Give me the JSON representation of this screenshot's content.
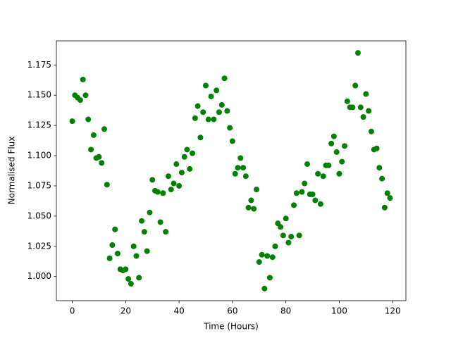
{
  "chart_data": {
    "type": "scatter",
    "x_label": "Time (Hours)",
    "y_label": "Normalised Flux",
    "color": "#008000",
    "grid": false,
    "x": [
      0,
      1,
      2,
      3,
      4,
      5,
      6,
      7,
      8,
      9,
      10,
      11,
      12,
      13,
      14,
      15,
      16,
      17,
      18,
      19,
      20,
      21,
      22,
      23,
      24,
      25,
      26,
      27,
      28,
      29,
      30,
      31,
      32,
      33,
      34,
      35,
      36,
      37,
      38,
      39,
      40,
      41,
      42,
      43,
      44,
      45,
      46,
      47,
      48,
      49,
      50,
      51,
      52,
      53,
      54,
      55,
      56,
      57,
      58,
      59,
      60,
      61,
      62,
      63,
      64,
      65,
      66,
      67,
      68,
      69,
      70,
      71,
      72,
      73,
      74,
      75,
      76,
      77,
      78,
      79,
      80,
      81,
      82,
      83,
      84,
      85,
      86,
      87,
      88,
      89,
      90,
      91,
      92,
      93,
      94,
      95,
      96,
      97,
      98,
      99,
      100,
      101,
      102,
      103,
      104,
      105,
      106,
      107,
      108,
      109,
      110,
      111,
      112,
      113,
      114,
      115,
      116,
      117,
      118,
      119
    ],
    "values": [
      1.1285,
      1.15,
      1.148,
      1.146,
      1.163,
      1.15,
      1.13,
      1.105,
      1.117,
      1.098,
      1.099,
      1.094,
      1.122,
      1.076,
      1.015,
      1.026,
      1.039,
      1.019,
      1.006,
      1.005,
      1.006,
      0.998,
      0.994,
      1.025,
      1.017,
      0.999,
      1.046,
      1.037,
      1.021,
      1.053,
      1.08,
      1.071,
      1.07,
      1.045,
      1.069,
      1.037,
      1.083,
      1.072,
      1.077,
      1.093,
      1.075,
      1.086,
      1.099,
      1.105,
      1.089,
      1.102,
      1.131,
      1.141,
      1.115,
      1.136,
      1.158,
      1.13,
      1.149,
      1.13,
      1.154,
      1.136,
      1.142,
      1.164,
      1.137,
      1.123,
      1.112,
      1.085,
      1.09,
      1.098,
      1.09,
      1.083,
      1.057,
      1.063,
      1.056,
      1.072,
      1.012,
      1.018,
      0.99,
      1.017,
      0.999,
      1.016,
      1.025,
      1.044,
      1.041,
      1.034,
      1.048,
      1.028,
      1.033,
      1.059,
      1.069,
      1.034,
      1.07,
      1.077,
      1.093,
      1.068,
      1.068,
      1.063,
      1.085,
      1.06,
      1.083,
      1.092,
      1.092,
      1.11,
      1.116,
      1.103,
      1.085,
      1.095,
      1.108,
      1.145,
      1.14,
      1.14,
      1.158,
      1.185,
      1.14,
      1.132,
      1.151,
      1.137,
      1.12,
      1.105,
      1.106,
      1.09,
      1.081,
      1.057,
      1.069,
      1.065
    ],
    "xlim": [
      -5.95,
      124.95
    ],
    "ylim": [
      0.98,
      1.195
    ],
    "xticks": [
      0,
      20,
      40,
      60,
      80,
      100,
      120
    ],
    "yticks": [
      {
        "value": 1.0,
        "label": "1.000"
      },
      1.025,
      {
        "value": 1.05,
        "label": "1.050"
      },
      1.075,
      {
        "value": 1.1,
        "label": "1.100"
      },
      1.125,
      {
        "value": 1.15,
        "label": "1.150"
      },
      1.175
    ]
  }
}
